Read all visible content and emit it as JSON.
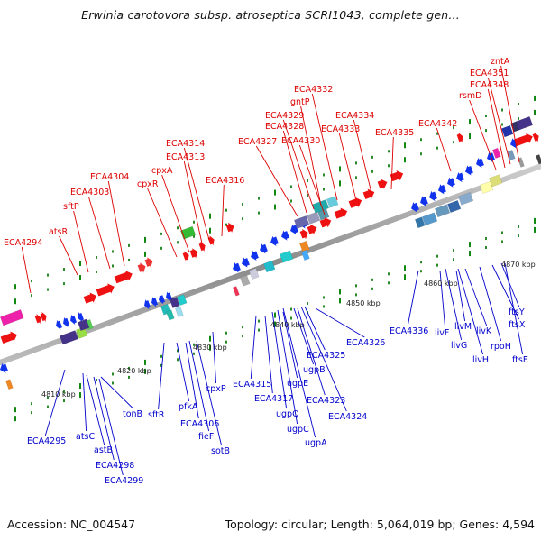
{
  "title": "Erwinia carotovora subsp. atroseptica SCRI1043, complete gen...",
  "footer": {
    "accession": "Accession: NC_004547",
    "summary": "Topology: circular; Length: 5,064,019 bp; Genes: 4,594"
  },
  "colors": {
    "forward_label": "#dd0000",
    "reverse_label": "#0000cc",
    "forward_gene": "#ee1111",
    "reverse_gene": "#1133ee",
    "tick_minor": "#118811",
    "backbone": "#999999"
  },
  "kbp_ticks": [
    "4810 kbp",
    "4820 kbp",
    "4830 kbp",
    "4840 kbp",
    "4850 kbp",
    "4860 kbp",
    "4870 kbp"
  ],
  "forward_labels": [
    "ECA4294",
    "atsR",
    "sftP",
    "ECA4303",
    "ECA4304",
    "cpxR",
    "cpxA",
    "ECA4313",
    "ECA4314",
    "ECA4316",
    "ECA4327",
    "ECA4328",
    "ECA4329",
    "gntP",
    "ECA4332",
    "ECA4330",
    "ECA4333",
    "ECA4334",
    "ECA4335",
    "ECA4342",
    "rsmD",
    "ECA4348",
    "ECA4351",
    "zntA"
  ],
  "reverse_labels": [
    "ECA4295",
    "atsC",
    "astB",
    "ECA4298",
    "ECA4299",
    "tonB",
    "sftR",
    "pfkA",
    "ECA4306",
    "fieF",
    "sotB",
    "cpxP",
    "ECA4315",
    "ECA4317",
    "ugpQ",
    "ugpC",
    "ugpA",
    "ugpE",
    "ugpB",
    "ECA4323",
    "ECA4324",
    "ECA4325",
    "ECA4326",
    "ECA4336",
    "livF",
    "livG",
    "livM",
    "livH",
    "livK",
    "rpoH",
    "ftsX",
    "ftsY",
    "ftsE"
  ]
}
